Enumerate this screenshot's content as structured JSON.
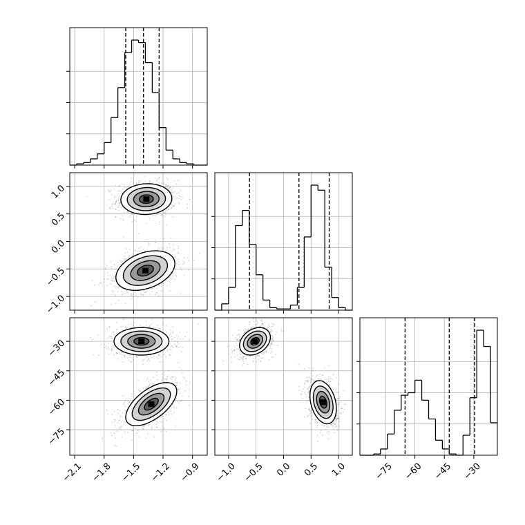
{
  "chart_data": {
    "type": "corner",
    "quantile_style": "dashed",
    "colors": {
      "line": "#000000",
      "grid": "#b0b0b0",
      "points": "#808080"
    },
    "grid": true,
    "parameters": [
      {
        "range": [
          -2.15,
          -0.75
        ],
        "ticks": [
          -2.1,
          -1.8,
          -1.5,
          -1.2,
          -0.9
        ],
        "tick_labels": [
          "−2.1",
          "−1.8",
          "−1.5",
          "−1.2",
          "−0.9"
        ],
        "quantiles": [
          -1.58,
          -1.4,
          -1.24
        ],
        "hist": {
          "start": -2.15,
          "width": 0.07,
          "counts": [
            0,
            1,
            2,
            5,
            9,
            18,
            38,
            62,
            90,
            100,
            98,
            82,
            58,
            30,
            12,
            5,
            2,
            1,
            0,
            0
          ]
        }
      },
      {
        "range": [
          -1.25,
          1.25
        ],
        "ticks": [
          -1.0,
          -0.5,
          0.0,
          0.5,
          1.0
        ],
        "tick_labels": [
          "−1.0",
          "−0.5",
          "0.0",
          "0.5",
          "1.0"
        ],
        "quantiles": [
          -0.62,
          0.28,
          0.83
        ],
        "hist": {
          "start": -1.25,
          "width": 0.125,
          "counts": [
            0,
            5,
            18,
            67,
            79,
            52,
            28,
            8,
            2,
            1,
            1,
            4,
            18,
            58,
            99,
            95,
            34,
            10,
            2,
            0
          ]
        }
      },
      {
        "range": [
          -88,
          -18
        ],
        "ticks": [
          -75,
          -60,
          -45,
          -30
        ],
        "tick_labels": [
          "−75",
          "−60",
          "−45",
          "−30"
        ],
        "quantiles": [
          -65,
          -42.5,
          -29.5
        ],
        "hist": {
          "start": -88,
          "width": 3.5,
          "counts": [
            0,
            0,
            1,
            5,
            17,
            36,
            48,
            50,
            60,
            44,
            29,
            12,
            5,
            1,
            0,
            16,
            46,
            100,
            87,
            26
          ]
        }
      }
    ],
    "pairs": [
      {
        "x": 0,
        "y": 1,
        "blobs": [
          {
            "cx": -1.37,
            "cy": 0.77,
            "sx": 0.13,
            "sy": 0.14,
            "rho": 0.05,
            "weight": 1
          },
          {
            "cx": -1.38,
            "cy": -0.53,
            "sx": 0.15,
            "sy": 0.18,
            "rho": 0.35,
            "weight": 1
          }
        ]
      },
      {
        "x": 0,
        "y": 2,
        "blobs": [
          {
            "cx": -1.42,
            "cy": -30,
            "sx": 0.14,
            "sy": 3.5,
            "rho": 0.0,
            "weight": 1
          },
          {
            "cx": -1.32,
            "cy": -62,
            "sx": 0.13,
            "sy": 5.5,
            "rho": 0.6,
            "weight": 1
          }
        ]
      },
      {
        "x": 1,
        "y": 2,
        "blobs": [
          {
            "cx": -0.52,
            "cy": -30,
            "sx": 0.14,
            "sy": 3.5,
            "rho": 0.3,
            "weight": 1
          },
          {
            "cx": 0.72,
            "cy": -61,
            "sx": 0.12,
            "sy": 5.5,
            "rho": -0.3,
            "weight": 1
          }
        ]
      }
    ]
  }
}
